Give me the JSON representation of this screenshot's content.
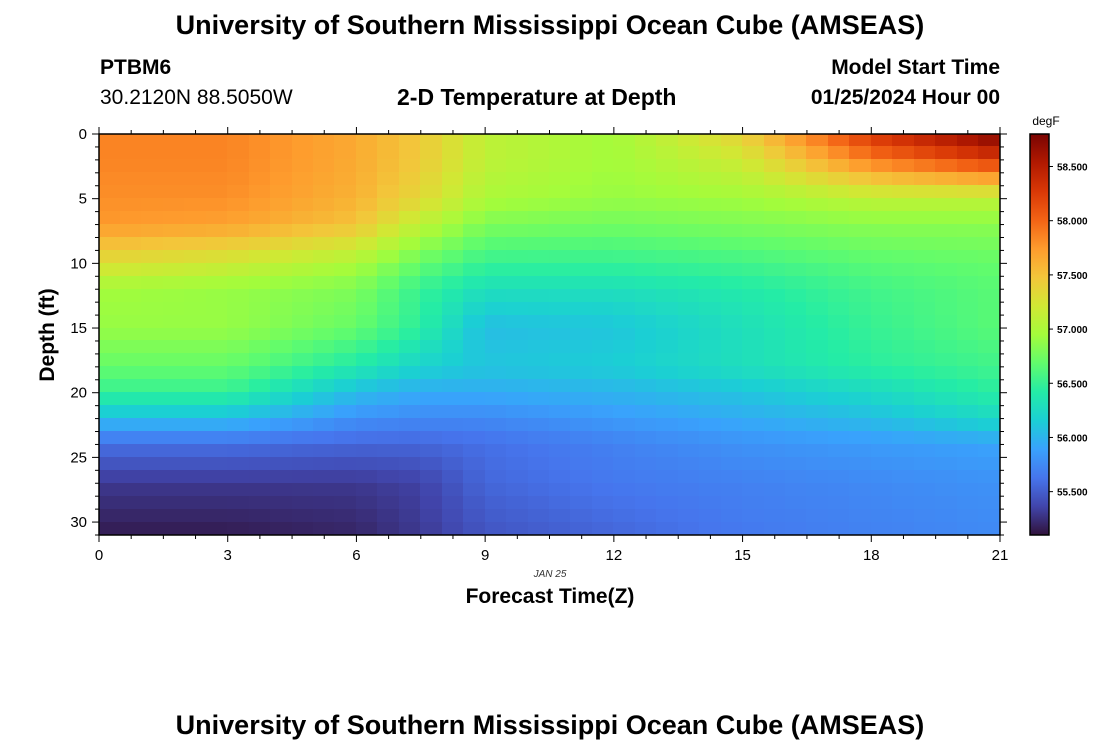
{
  "header": {
    "title": "University of Southern Mississippi Ocean Cube (AMSEAS)",
    "station_id": "PTBM6",
    "coordinates": "30.2120N  88.5050W",
    "subtitle": "2-D Temperature at Depth",
    "model_start_label": "Model Start Time",
    "model_start_value": "01/25/2024 Hour 00"
  },
  "footer": {
    "title": "University of Southern Mississippi Ocean Cube (AMSEAS)"
  },
  "colors": {
    "colormap": [
      "#30123b",
      "#4145ab",
      "#4675ed",
      "#39a2fc",
      "#1bcfd4",
      "#24eca6",
      "#61fc6c",
      "#a4fc3b",
      "#d1e834",
      "#f3c63a",
      "#fe9b2d",
      "#f36315",
      "#d93806",
      "#b11901",
      "#7a0402"
    ]
  },
  "chart_data": {
    "type": "heatmap",
    "title": "2-D Temperature at Depth",
    "xlabel": "Forecast Time(Z)",
    "ylabel": "Depth (ft)",
    "x_sublabel": "JAN 25",
    "xlim": [
      0,
      21
    ],
    "ylim": [
      0,
      31
    ],
    "xticks": [
      0,
      3,
      6,
      9,
      12,
      15,
      18,
      21
    ],
    "yticks": [
      0,
      5,
      10,
      15,
      20,
      25,
      30
    ],
    "colorbar": {
      "units": "degF",
      "range": [
        55.1,
        58.8
      ],
      "ticks": [
        "55.500",
        "56.000",
        "56.500",
        "57.000",
        "57.500",
        "58.000",
        "58.500"
      ]
    },
    "x": [
      0,
      3,
      6,
      7.5,
      9,
      12,
      15,
      18,
      21
    ],
    "depths": [
      0,
      2,
      5,
      7,
      10,
      12,
      15,
      18,
      20,
      22,
      24,
      27,
      31
    ],
    "values": [
      [
        57.85,
        57.85,
        57.65,
        57.45,
        57.1,
        56.95,
        57.4,
        58.3,
        58.8
      ],
      [
        57.85,
        57.85,
        57.65,
        57.45,
        57.1,
        56.95,
        57.2,
        57.9,
        58.3
      ],
      [
        57.8,
        57.8,
        57.6,
        57.35,
        57.0,
        56.9,
        56.95,
        57.1,
        57.1
      ],
      [
        57.75,
        57.7,
        57.5,
        57.1,
        56.8,
        56.75,
        56.8,
        56.85,
        56.85
      ],
      [
        57.3,
        57.2,
        57.0,
        56.7,
        56.5,
        56.5,
        56.55,
        56.65,
        56.7
      ],
      [
        56.95,
        56.9,
        56.8,
        56.5,
        56.3,
        56.3,
        56.4,
        56.55,
        56.65
      ],
      [
        56.9,
        56.9,
        56.7,
        56.45,
        56.05,
        56.1,
        56.3,
        56.5,
        56.65
      ],
      [
        56.7,
        56.7,
        56.4,
        56.2,
        56.1,
        56.15,
        56.3,
        56.45,
        56.55
      ],
      [
        56.5,
        56.5,
        56.05,
        55.95,
        55.95,
        56.0,
        56.1,
        56.25,
        56.45
      ],
      [
        56.05,
        56.05,
        55.8,
        55.75,
        55.75,
        55.85,
        55.95,
        56.05,
        56.25
      ],
      [
        55.6,
        55.6,
        55.55,
        55.55,
        55.6,
        55.7,
        55.8,
        55.85,
        55.9
      ],
      [
        55.3,
        55.3,
        55.3,
        55.35,
        55.55,
        55.65,
        55.7,
        55.75,
        55.8
      ],
      [
        55.15,
        55.15,
        55.2,
        55.3,
        55.45,
        55.55,
        55.65,
        55.7,
        55.75
      ]
    ]
  }
}
